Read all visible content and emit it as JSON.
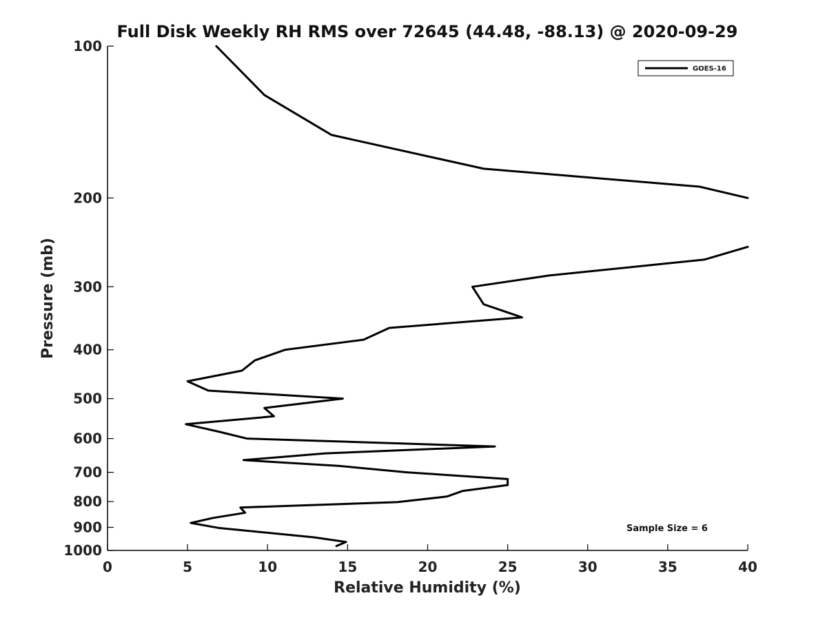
{
  "chart_data": {
    "type": "line",
    "title": "Full Disk Weekly RH RMS over 72645 (44.48, -88.13) @ 2020-09-29",
    "xlabel": "Relative Humidity (%)",
    "ylabel": "Pressure (mb)",
    "xlim": [
      0,
      40
    ],
    "ylim": [
      100,
      1000
    ],
    "y_scale": "log",
    "y_inverted": true,
    "xticks": [
      0,
      5,
      10,
      15,
      20,
      25,
      30,
      35,
      40
    ],
    "yticks": [
      100,
      200,
      300,
      400,
      500,
      600,
      700,
      800,
      900,
      1000
    ],
    "grid": false,
    "legend_position": "top-right",
    "annotation": "Sample Size = 6",
    "series": [
      {
        "name": "GOES-16",
        "color": "#000000",
        "segments": [
          [
            {
              "x": 6.8,
              "y": 100
            },
            {
              "x": 9.8,
              "y": 125
            },
            {
              "x": 14.0,
              "y": 150
            },
            {
              "x": 23.5,
              "y": 175
            },
            {
              "x": 37.0,
              "y": 190
            },
            {
              "x": 40.0,
              "y": 200
            }
          ],
          [
            {
              "x": 40.0,
              "y": 250
            },
            {
              "x": 37.3,
              "y": 265
            },
            {
              "x": 27.6,
              "y": 285
            },
            {
              "x": 22.8,
              "y": 300
            },
            {
              "x": 23.5,
              "y": 325
            },
            {
              "x": 25.9,
              "y": 345
            },
            {
              "x": 17.6,
              "y": 362
            },
            {
              "x": 16.0,
              "y": 382
            },
            {
              "x": 11.1,
              "y": 400
            },
            {
              "x": 9.2,
              "y": 420
            },
            {
              "x": 8.4,
              "y": 440
            },
            {
              "x": 5.0,
              "y": 462
            },
            {
              "x": 6.3,
              "y": 482
            },
            {
              "x": 14.7,
              "y": 500
            },
            {
              "x": 9.8,
              "y": 522
            },
            {
              "x": 10.4,
              "y": 542
            },
            {
              "x": 4.9,
              "y": 562
            },
            {
              "x": 7.0,
              "y": 582
            },
            {
              "x": 8.7,
              "y": 600
            },
            {
              "x": 24.2,
              "y": 622
            },
            {
              "x": 13.6,
              "y": 642
            },
            {
              "x": 8.5,
              "y": 662
            },
            {
              "x": 14.5,
              "y": 680
            },
            {
              "x": 18.7,
              "y": 700
            },
            {
              "x": 25.0,
              "y": 722
            },
            {
              "x": 25.0,
              "y": 742
            },
            {
              "x": 22.2,
              "y": 762
            },
            {
              "x": 21.2,
              "y": 782
            },
            {
              "x": 18.1,
              "y": 802
            },
            {
              "x": 8.3,
              "y": 822
            },
            {
              "x": 8.6,
              "y": 842
            },
            {
              "x": 6.6,
              "y": 862
            },
            {
              "x": 5.2,
              "y": 882
            },
            {
              "x": 6.9,
              "y": 902
            },
            {
              "x": 12.9,
              "y": 942
            },
            {
              "x": 14.9,
              "y": 962
            },
            {
              "x": 14.3,
              "y": 980
            }
          ]
        ]
      }
    ]
  }
}
